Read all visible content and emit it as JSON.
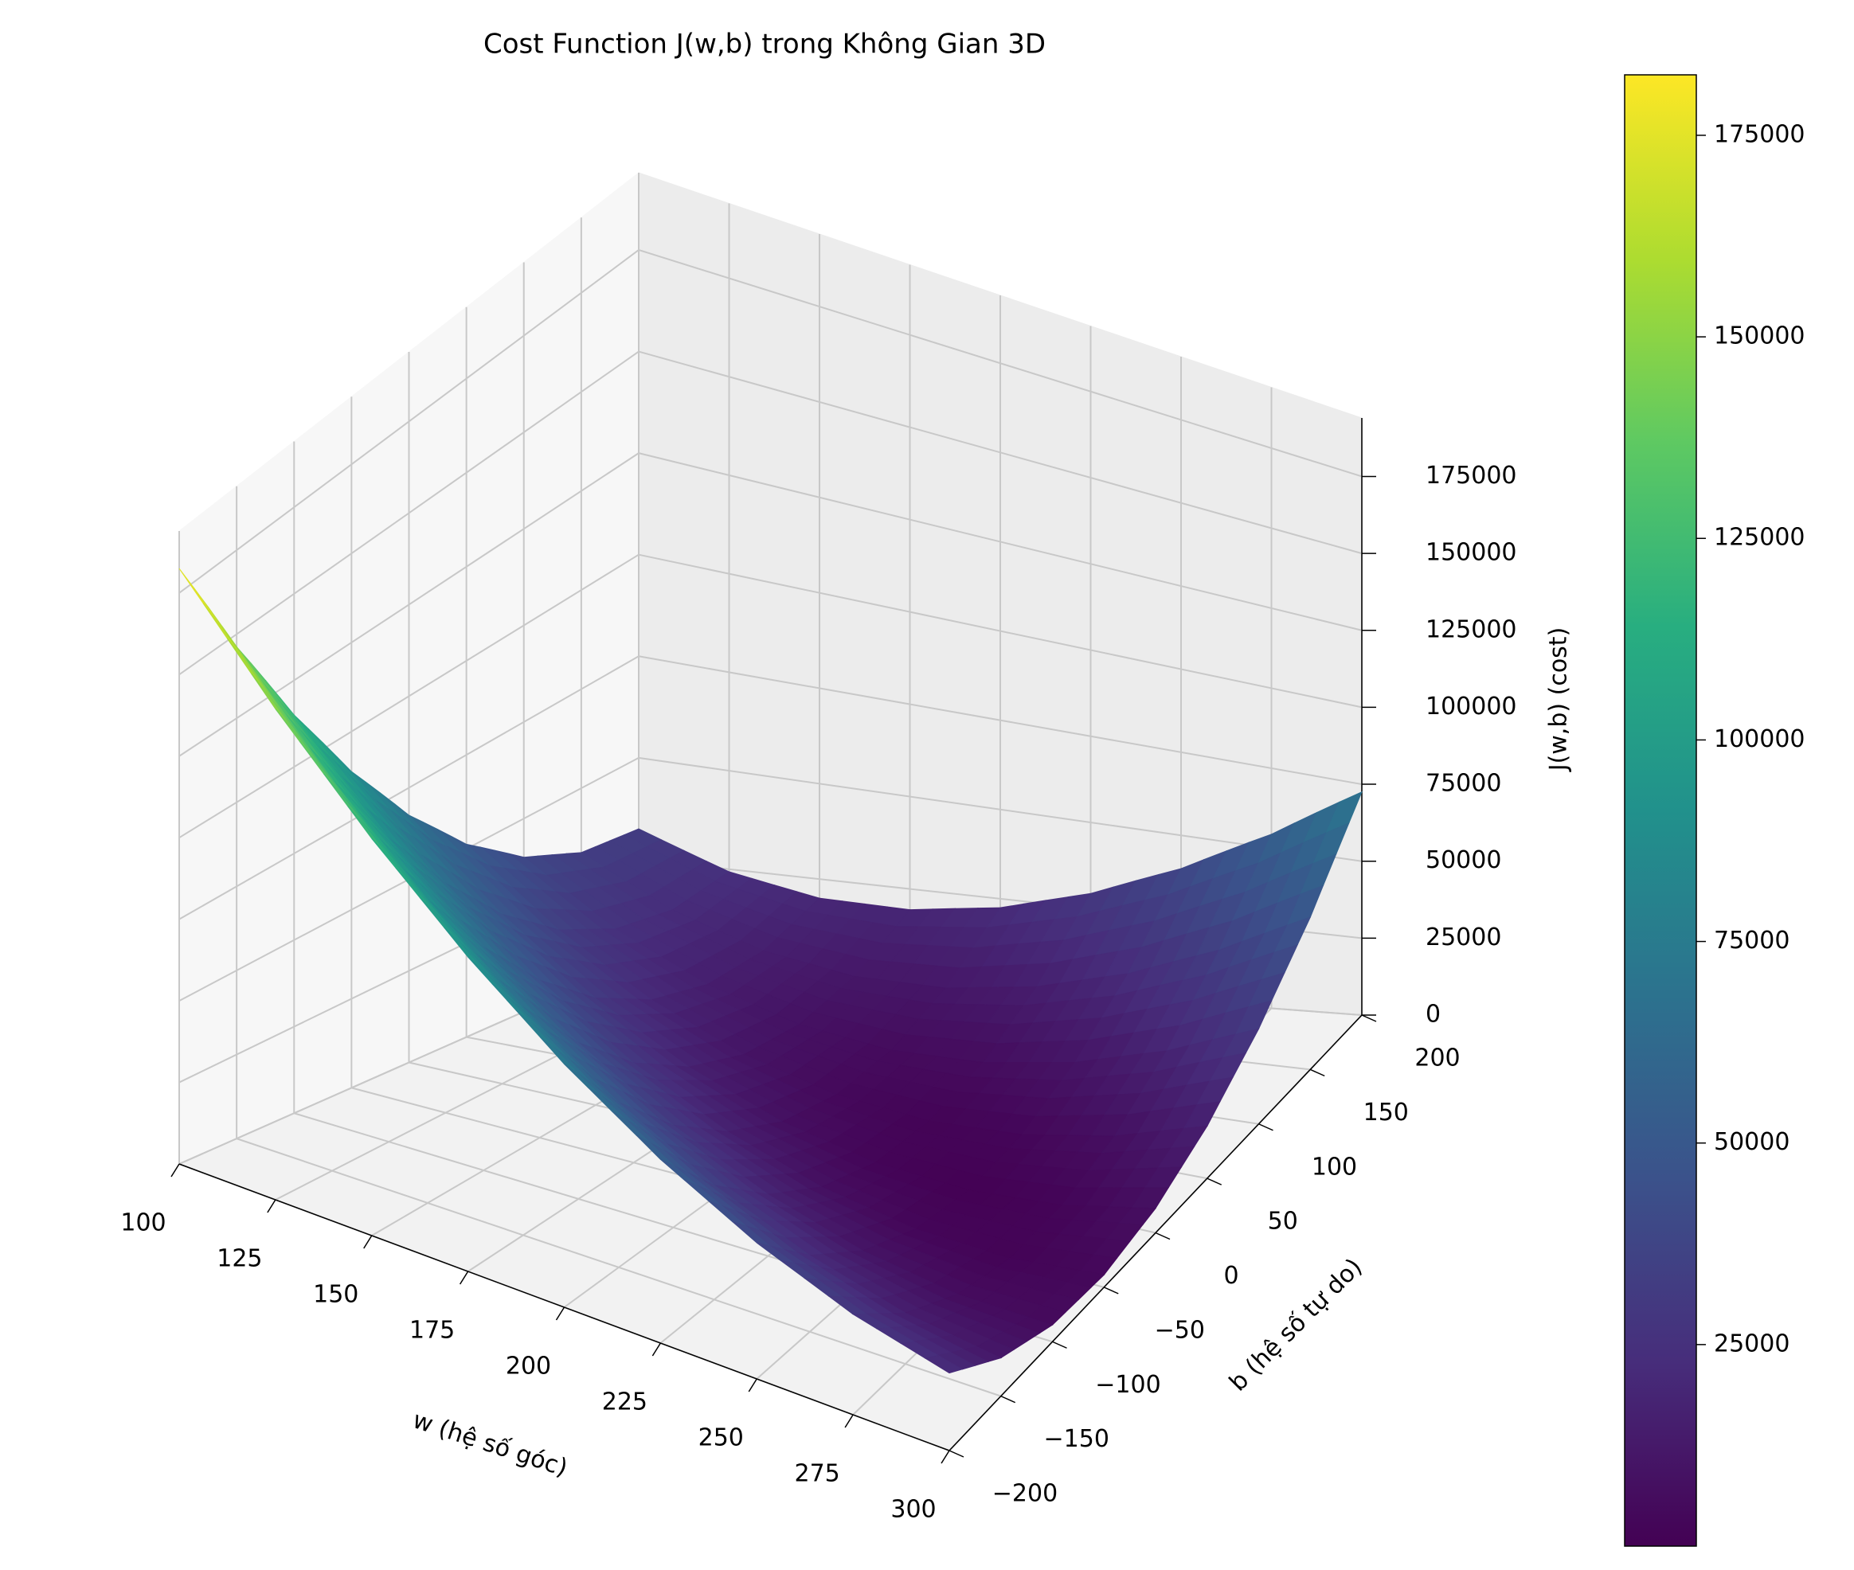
{
  "chart_data": {
    "type": "surface",
    "title": "Cost Function J(w,b) trong Không Gian 3D",
    "x_label": "w (hệ số góc)",
    "y_label": "b (hệ số tự do)",
    "z_label": "J(w,b) (cost)",
    "colormap": "viridis",
    "x": [
      100,
      125,
      150,
      175,
      200,
      225,
      250,
      275,
      300
    ],
    "y": [
      -200,
      -150,
      -100,
      -50,
      0,
      50,
      100,
      150,
      200
    ],
    "z": [
      [
        182500,
        146250,
        115000,
        88750,
        67500,
        51250,
        40000,
        33750,
        32500
      ],
      [
        149375,
        116250,
        88125,
        65000,
        46875,
        33750,
        25625,
        22500,
        24375
      ],
      [
        120000,
        90000,
        65000,
        45000,
        30000,
        20000,
        15000,
        15000,
        20000
      ],
      [
        94375,
        67500,
        45625,
        28750,
        16875,
        10000,
        8125,
        11250,
        19375
      ],
      [
        72500,
        48750,
        30000,
        16250,
        7500,
        3750,
        5000,
        11250,
        22500
      ],
      [
        54375,
        33750,
        18125,
        7500,
        1875,
        1250,
        5625,
        15000,
        29375
      ],
      [
        40000,
        22500,
        10000,
        2500,
        0,
        2500,
        10000,
        22500,
        40000
      ],
      [
        29375,
        15000,
        5625,
        1250,
        1875,
        7500,
        18125,
        33750,
        54375
      ],
      [
        22500,
        11250,
        5000,
        3750,
        7500,
        16250,
        30000,
        48750,
        72500
      ]
    ],
    "xlim": [
      100,
      300
    ],
    "ylim": [
      -200,
      200
    ],
    "zlim": [
      0,
      194000
    ],
    "xticks": [
      100,
      125,
      150,
      175,
      200,
      225,
      250,
      275,
      300
    ],
    "yticks": [
      {
        "value": -200,
        "label": "−200"
      },
      {
        "value": -150,
        "label": "−150"
      },
      {
        "value": -100,
        "label": "−100"
      },
      {
        "value": -50,
        "label": "−50"
      },
      0,
      50,
      100,
      150,
      200
    ],
    "zticks": [
      0,
      25000,
      50000,
      75000,
      100000,
      125000,
      150000,
      175000
    ],
    "colorbar": {
      "clim": [
        0,
        182500
      ],
      "ticks": [
        25000,
        50000,
        75000,
        100000,
        125000,
        150000,
        175000
      ]
    },
    "grid": true
  }
}
